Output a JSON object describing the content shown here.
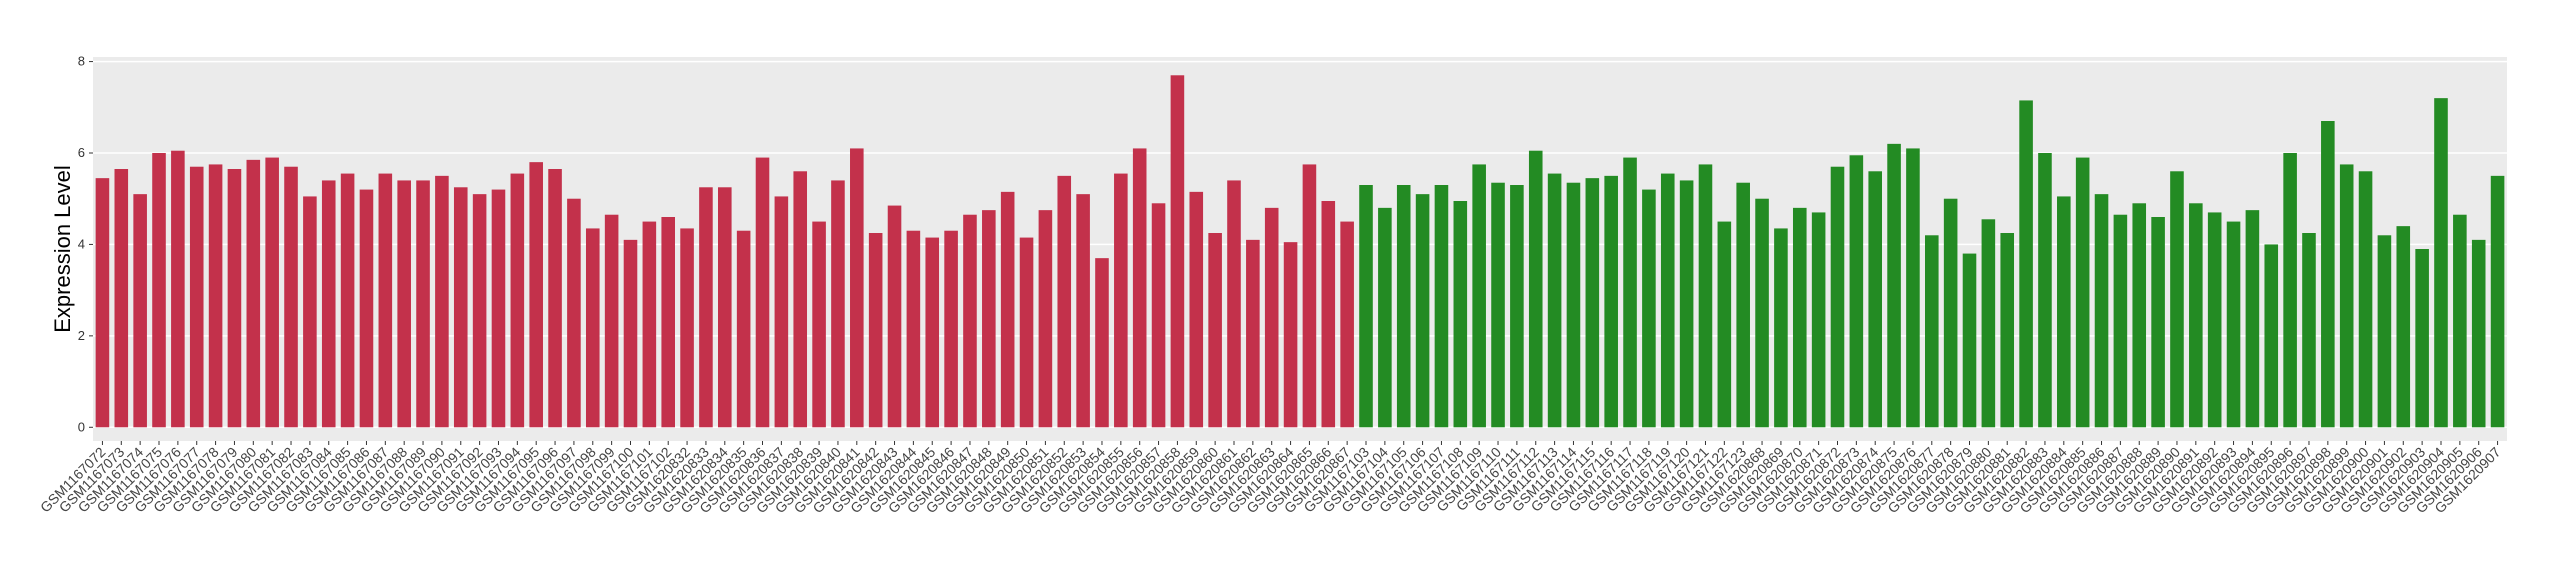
{
  "chart_data": {
    "type": "bar",
    "y_label": "Expression Level",
    "ylim": [
      -0.3,
      8.1
    ],
    "yticks": [
      0,
      2,
      4,
      6,
      8
    ],
    "grid": true,
    "series": [
      {
        "color": "#c3314b",
        "categories": [
          "GSM1167072",
          "GSM1167073",
          "GSM1167074",
          "GSM1167075",
          "GSM1167076",
          "GSM1167077",
          "GSM1167078",
          "GSM1167079",
          "GSM1167080",
          "GSM1167081",
          "GSM1167082",
          "GSM1167083",
          "GSM1167084",
          "GSM1167085",
          "GSM1167086",
          "GSM1167087",
          "GSM1167088",
          "GSM1167089",
          "GSM1167090",
          "GSM1167091",
          "GSM1167092",
          "GSM1167093",
          "GSM1167094",
          "GSM1167095",
          "GSM1167096",
          "GSM1167097",
          "GSM1167098",
          "GSM1167099",
          "GSM1167100",
          "GSM1167101",
          "GSM1167102",
          "GSM1620832",
          "GSM1620833",
          "GSM1620834",
          "GSM1620835",
          "GSM1620836",
          "GSM1620837",
          "GSM1620838",
          "GSM1620839",
          "GSM1620840",
          "GSM1620841",
          "GSM1620842",
          "GSM1620843",
          "GSM1620844",
          "GSM1620845",
          "GSM1620846",
          "GSM1620847",
          "GSM1620848",
          "GSM1620849",
          "GSM1620850",
          "GSM1620851",
          "GSM1620852",
          "GSM1620853",
          "GSM1620854",
          "GSM1620855",
          "GSM1620856",
          "GSM1620857",
          "GSM1620858",
          "GSM1620859",
          "GSM1620860",
          "GSM1620861",
          "GSM1620862",
          "GSM1620863",
          "GSM1620864",
          "GSM1620865",
          "GSM1620866",
          "GSM1620867"
        ],
        "values": [
          5.45,
          5.65,
          5.1,
          6.0,
          6.05,
          5.7,
          5.75,
          5.65,
          5.85,
          5.9,
          5.7,
          5.05,
          5.4,
          5.55,
          5.2,
          5.55,
          5.4,
          5.4,
          5.5,
          5.25,
          5.1,
          5.2,
          5.55,
          5.8,
          5.65,
          5.0,
          4.35,
          4.65,
          4.1,
          4.5,
          4.6,
          4.35,
          5.25,
          5.25,
          4.3,
          5.9,
          5.05,
          5.6,
          4.5,
          5.4,
          6.1,
          4.25,
          4.85,
          4.3,
          4.15,
          4.3,
          4.65,
          4.75,
          5.15,
          4.15,
          4.75,
          5.5,
          5.1,
          3.7,
          5.55,
          6.1,
          4.9,
          7.7,
          5.15,
          4.25,
          5.4,
          4.1,
          4.8,
          4.05,
          5.75,
          4.95,
          4.5
        ]
      },
      {
        "color": "#238b23",
        "categories": [
          "GSM1167103",
          "GSM1167104",
          "GSM1167105",
          "GSM1167106",
          "GSM1167107",
          "GSM1167108",
          "GSM1167109",
          "GSM1167110",
          "GSM1167111",
          "GSM1167112",
          "GSM1167113",
          "GSM1167114",
          "GSM1167115",
          "GSM1167116",
          "GSM1167117",
          "GSM1167118",
          "GSM1167119",
          "GSM1167120",
          "GSM1167121",
          "GSM1167122",
          "GSM1167123",
          "GSM1620868",
          "GSM1620869",
          "GSM1620870",
          "GSM1620871",
          "GSM1620872",
          "GSM1620873",
          "GSM1620874",
          "GSM1620875",
          "GSM1620876",
          "GSM1620877",
          "GSM1620878",
          "GSM1620879",
          "GSM1620880",
          "GSM1620881",
          "GSM1620882",
          "GSM1620883",
          "GSM1620884",
          "GSM1620885",
          "GSM1620886",
          "GSM1620887",
          "GSM1620888",
          "GSM1620889",
          "GSM1620890",
          "GSM1620891",
          "GSM1620892",
          "GSM1620893",
          "GSM1620894",
          "GSM1620895",
          "GSM1620896",
          "GSM1620897",
          "GSM1620898",
          "GSM1620899",
          "GSM1620900",
          "GSM1620901",
          "GSM1620902",
          "GSM1620903",
          "GSM1620904",
          "GSM1620905",
          "GSM1620906",
          "GSM1620907"
        ],
        "values": [
          5.3,
          4.8,
          5.3,
          5.1,
          5.3,
          4.95,
          5.75,
          5.35,
          5.3,
          6.05,
          5.55,
          5.35,
          5.45,
          5.5,
          5.9,
          5.2,
          5.55,
          5.4,
          5.75,
          4.5,
          5.35,
          5.0,
          4.35,
          4.8,
          4.7,
          5.7,
          5.95,
          5.6,
          6.2,
          6.1,
          4.2,
          5.0,
          3.8,
          4.55,
          4.25,
          7.15,
          6.0,
          5.05,
          5.9,
          5.1,
          4.65,
          4.9,
          4.6,
          5.6,
          4.9,
          4.7,
          4.5,
          4.75,
          4.0,
          6.0,
          4.25,
          6.7,
          5.75,
          5.6,
          4.2,
          4.4,
          3.9,
          7.2,
          4.65,
          4.1,
          5.5
        ]
      }
    ]
  }
}
